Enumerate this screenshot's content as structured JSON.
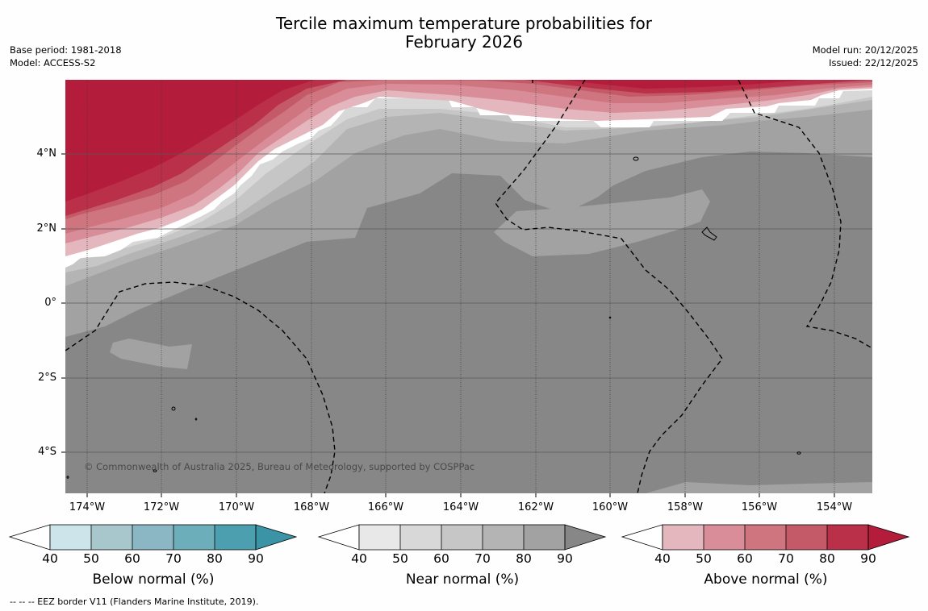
{
  "title": {
    "line1": "Tercile maximum temperature probabilities for",
    "line2": "February 2026"
  },
  "meta_left": {
    "base_period": "Base period: 1981-2018",
    "model": "Model: ACCESS-S2"
  },
  "meta_right": {
    "model_run": "Model run: 20/12/2025",
    "issued": "Issued: 22/12/2025"
  },
  "latitude_labels": [
    "4°N",
    "2°N",
    "0°",
    "2°S",
    "4°S"
  ],
  "longitude_labels": [
    "174°W",
    "172°W",
    "170°W",
    "168°W",
    "166°W",
    "164°W",
    "162°W",
    "160°W",
    "158°W",
    "156°W",
    "154°W"
  ],
  "copyright": "© Commonwealth of Australia 2025, Bureau of Meteorology, supported by COSPPac",
  "colorbars": [
    {
      "name": "below",
      "title": "Below normal (%)",
      "ticks": [
        "40",
        "50",
        "60",
        "70",
        "80",
        "90"
      ],
      "colors": [
        "#cde4ea",
        "#a8c7cc",
        "#8ab7c3",
        "#6daebb",
        "#4c9fae",
        "#3b93a6"
      ]
    },
    {
      "name": "near",
      "title": "Near normal (%)",
      "ticks": [
        "40",
        "50",
        "60",
        "70",
        "80",
        "90"
      ],
      "colors": [
        "#e8e8e8",
        "#d8d8d8",
        "#c6c6c6",
        "#b4b4b4",
        "#a2a2a2",
        "#878787"
      ]
    },
    {
      "name": "above",
      "title": "Above normal (%)",
      "ticks": [
        "40",
        "50",
        "60",
        "70",
        "80",
        "90"
      ],
      "colors": [
        "#e3b7bd",
        "#d98d98",
        "#cf7580",
        "#c45a68",
        "#ba3048",
        "#b31c3a"
      ]
    }
  ],
  "footnote": "--  --  -- EEZ border V11 (Flanders Marine Institute, 2019).",
  "colors": {
    "below_normal_accent": "#3b93a6",
    "near_normal_accent": "#878787",
    "above_normal_accent": "#b31c3a"
  }
}
